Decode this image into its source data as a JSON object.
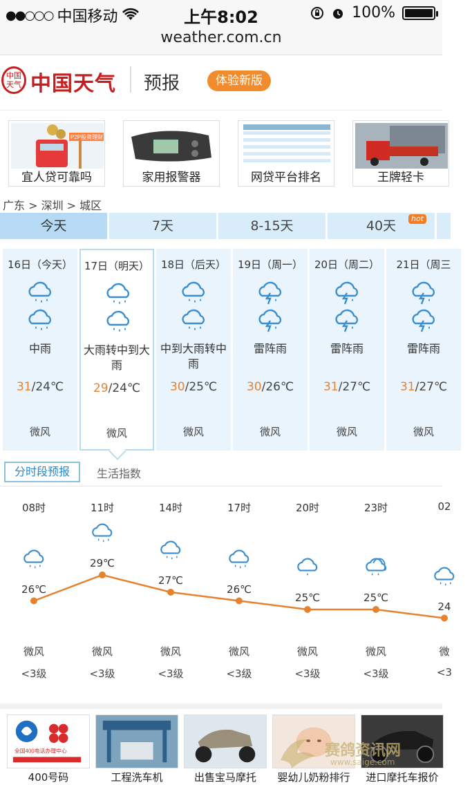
{
  "status_bar": {
    "carrier": "中国移动",
    "time": "上午8:02",
    "battery": "100%"
  },
  "url": "weather.com.cn",
  "header": {
    "logo_seal": "中国 天气",
    "logo_text": "中国天气",
    "section": "预报",
    "new_version_button": "体验新版"
  },
  "ads_top": [
    {
      "label": "宜人贷可靠吗",
      "tag": "P2P投资理财"
    },
    {
      "label": "家用报警器"
    },
    {
      "label": "网贷平台排名"
    },
    {
      "label": "王牌轻卡"
    }
  ],
  "breadcrumb": "广东 > 深圳 > 城区",
  "tabs": [
    {
      "label": "今天",
      "active": true
    },
    {
      "label": "7天"
    },
    {
      "label": "8-15天"
    },
    {
      "label": "40天",
      "badge": "hot"
    }
  ],
  "days": [
    {
      "date": "16日（今天）",
      "icon_day": "rain-icon",
      "icon_night": "rain-icon",
      "condition": "中雨",
      "high": "31",
      "low": "/24℃",
      "wind": "微风"
    },
    {
      "date": "17日（明天）",
      "icon_day": "rain-icon",
      "icon_night": "rain-icon",
      "condition": "大雨转中到大雨",
      "high": "29",
      "low": "/24℃",
      "wind": "微风",
      "selected": true
    },
    {
      "date": "18日（后天）",
      "icon_day": "rain-icon",
      "icon_night": "rain-icon",
      "condition": "中到大雨转中雨",
      "high": "30",
      "low": "/25℃",
      "wind": "微风"
    },
    {
      "date": "19日（周一）",
      "icon_day": "thunder-rain-icon",
      "icon_night": "thunder-rain-icon",
      "condition": "雷阵雨",
      "high": "30",
      "low": "/26℃",
      "wind": "微风"
    },
    {
      "date": "20日（周二）",
      "icon_day": "thunder-rain-icon",
      "icon_night": "thunder-rain-icon",
      "condition": "雷阵雨",
      "high": "31",
      "low": "/27℃",
      "wind": "微风"
    },
    {
      "date": "21日（周三",
      "icon_day": "thunder-rain-icon",
      "icon_night": "thunder-rain-icon",
      "condition": "雷阵雨",
      "high": "31",
      "low": "/27℃",
      "wind": "微风"
    }
  ],
  "sub_tabs": {
    "hourly": "分时段预报",
    "life": "生活指数"
  },
  "hourly": [
    {
      "time": "08时",
      "temp": "26℃",
      "wind": "微风",
      "level": "<3级",
      "icon": "rain-icon"
    },
    {
      "time": "11时",
      "temp": "29℃",
      "wind": "微风",
      "level": "<3级",
      "icon": "rain-icon"
    },
    {
      "time": "14时",
      "temp": "27℃",
      "wind": "微风",
      "level": "<3级",
      "icon": "rain-icon"
    },
    {
      "time": "17时",
      "temp": "26℃",
      "wind": "微风",
      "level": "<3级",
      "icon": "rain-icon"
    },
    {
      "time": "20时",
      "temp": "25℃",
      "wind": "微风",
      "level": "<3级",
      "icon": "light-rain-icon"
    },
    {
      "time": "23时",
      "temp": "25℃",
      "wind": "微风",
      "level": "<3级",
      "icon": "cloudy-rain-icon"
    },
    {
      "time": "02",
      "temp": "24",
      "wind": "微",
      "level": "<3",
      "icon": "rain-icon"
    }
  ],
  "hourly_temps": [
    26,
    29,
    27,
    26,
    25,
    25,
    24
  ],
  "ads_bottom": [
    {
      "label": "400号码",
      "sub": "全国400电话办理中心"
    },
    {
      "label": "工程洗车机"
    },
    {
      "label": "出售宝马摩托"
    },
    {
      "label": "婴幼儿奶粉排行"
    },
    {
      "label": "进口摩托车报价"
    }
  ],
  "watermark": {
    "text": "赛鸽资讯网",
    "url": "www.saige.com"
  },
  "colors": {
    "accent_orange": "#e6812e",
    "tab_blue": "#d9ecfa",
    "link_blue": "#2b86c7"
  }
}
